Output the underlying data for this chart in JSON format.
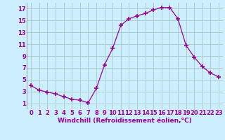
{
  "x": [
    0,
    1,
    2,
    3,
    4,
    5,
    6,
    7,
    8,
    9,
    10,
    11,
    12,
    13,
    14,
    15,
    16,
    17,
    18,
    19,
    20,
    21,
    22,
    23
  ],
  "y": [
    4.0,
    3.2,
    2.9,
    2.6,
    2.1,
    1.7,
    1.5,
    1.1,
    3.5,
    7.5,
    10.3,
    14.2,
    15.3,
    15.8,
    16.2,
    16.8,
    17.2,
    17.2,
    15.3,
    10.8,
    8.8,
    7.2,
    6.1,
    5.5
  ],
  "line_color": "#990099",
  "marker": "+",
  "marker_size": 4,
  "marker_lw": 1.2,
  "bg_color": "#cceeff",
  "grid_color": "#aacccc",
  "xlabel": "Windchill (Refroidissement éolien,°C)",
  "xlabel_color": "#990099",
  "xlabel_fontsize": 6.5,
  "tick_color": "#990099",
  "tick_fontsize": 6,
  "ylim": [
    0.0,
    18.0
  ],
  "xlim": [
    -0.5,
    23.5
  ],
  "yticks": [
    1,
    3,
    5,
    7,
    9,
    11,
    13,
    15,
    17
  ],
  "xticks": [
    0,
    1,
    2,
    3,
    4,
    5,
    6,
    7,
    8,
    9,
    10,
    11,
    12,
    13,
    14,
    15,
    16,
    17,
    18,
    19,
    20,
    21,
    22,
    23
  ]
}
